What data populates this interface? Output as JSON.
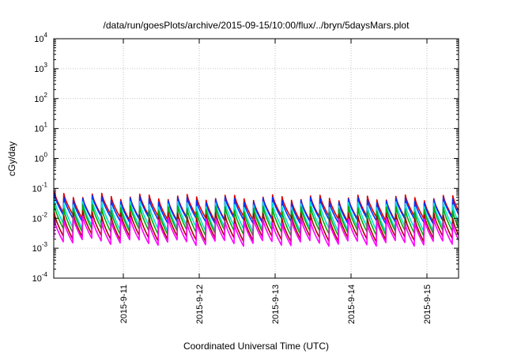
{
  "chart_data": {
    "type": "line",
    "title": "/data/run/goesPlots/archive/2015-09-15/10:00/flux/../bryn/5daysMars.plot",
    "xlabel": "Coordinated Universal Time (UTC)",
    "ylabel": "cGy/day",
    "y_scale": "log",
    "ylim": [
      0.0001,
      10000
    ],
    "y_ticks": [
      {
        "base": "10",
        "exp": "-4"
      },
      {
        "base": "10",
        "exp": "-3"
      },
      {
        "base": "10",
        "exp": "-2"
      },
      {
        "base": "10",
        "exp": "-1"
      },
      {
        "base": "10",
        "exp": "0"
      },
      {
        "base": "10",
        "exp": "1"
      },
      {
        "base": "10",
        "exp": "2"
      },
      {
        "base": "10",
        "exp": "3"
      },
      {
        "base": "10",
        "exp": "4"
      }
    ],
    "xlim": [
      "2015-09-10T02:00",
      "2015-09-15T10:00"
    ],
    "x_ticks": [
      "2015-9-11",
      "2015-9-12",
      "2015-9-13",
      "2015-9-14",
      "2015-9-15"
    ],
    "grid": true,
    "legend": "none",
    "cycle_hours": 3,
    "series": [
      {
        "color": "#dd0000",
        "peak": 0.06,
        "trough": 0.012
      },
      {
        "color": "#0033ff",
        "peak": 0.05,
        "trough": 0.01
      },
      {
        "color": "#00dddd",
        "peak": 0.035,
        "trough": 0.0055
      },
      {
        "color": "#00aa00",
        "peak": 0.025,
        "trough": 0.004
      },
      {
        "color": "#aa0000",
        "peak": 0.015,
        "trough": 0.0025
      },
      {
        "color": "#ff00ff",
        "peak": 0.01,
        "trough": 0.0018
      }
    ]
  }
}
